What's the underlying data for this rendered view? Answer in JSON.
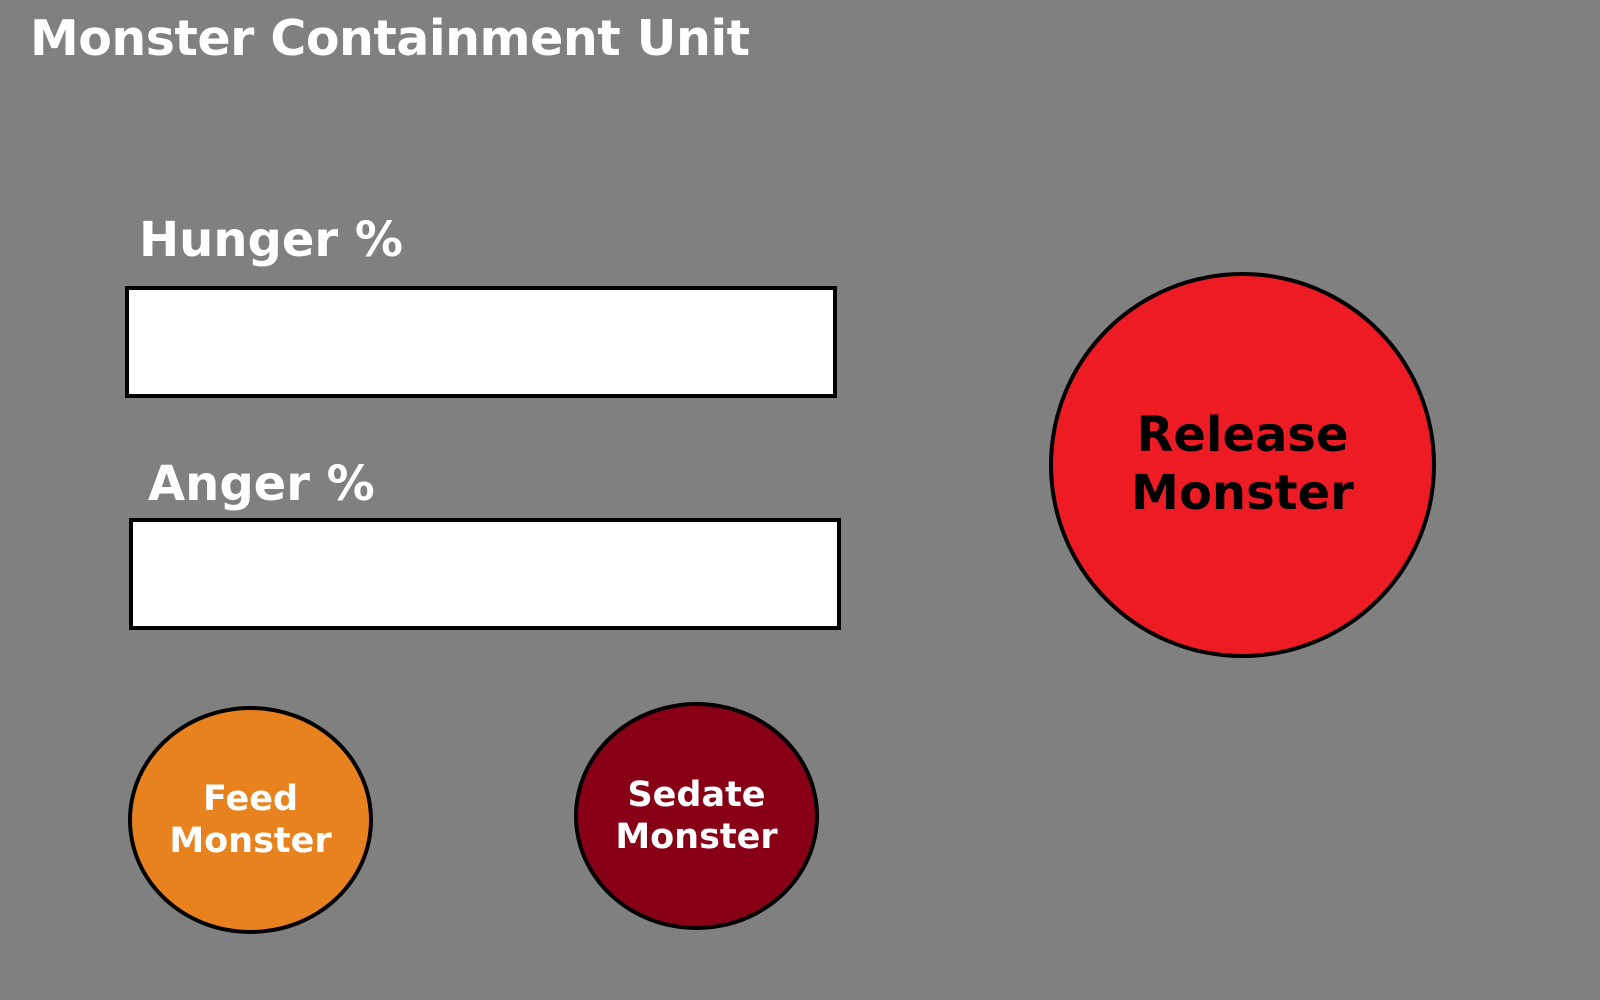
{
  "app": {
    "title": "Monster Containment Unit"
  },
  "meters": {
    "hunger": {
      "label": "Hunger %",
      "value": ""
    },
    "anger": {
      "label": "Anger %",
      "value": ""
    }
  },
  "buttons": {
    "release": {
      "line1": "Release",
      "line2": "Monster",
      "color": "#ED1C24",
      "text_color": "#000000"
    },
    "feed": {
      "line1": "Feed",
      "line2": "Monster",
      "color": "#E8821E",
      "text_color": "#FFFFFF"
    },
    "sedate": {
      "line1": "Sedate",
      "line2": "Monster",
      "color": "#880015",
      "text_color": "#FFFFFF"
    }
  },
  "colors": {
    "background": "#808080",
    "meter_fill": "#FFFFFF",
    "outline": "#000000"
  }
}
